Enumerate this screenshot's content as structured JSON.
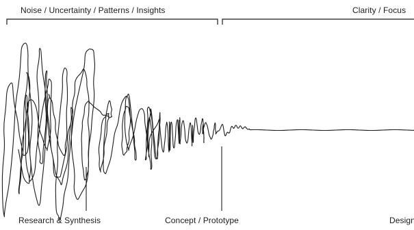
{
  "phases": {
    "top_left": "Noise / Uncertainty / Patterns / Insights",
    "top_right": "Clarity / Focus",
    "bottom_1": "Research & Synthesis",
    "bottom_2": "Concept / Prototype",
    "bottom_3": "Design"
  },
  "colors": {
    "ink": "#1b1b1b",
    "background": "#ffffff"
  }
}
